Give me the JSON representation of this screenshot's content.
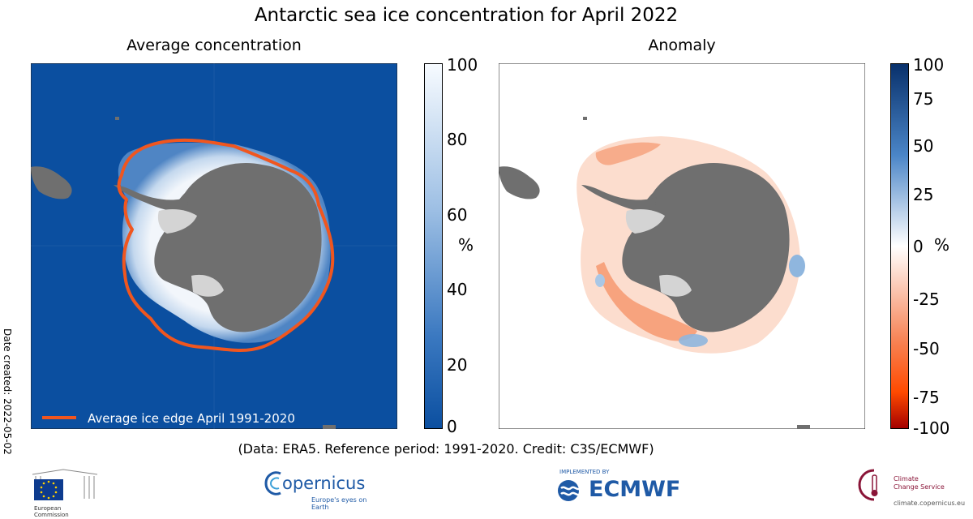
{
  "title": "Antarctic sea ice concentration for April 2022",
  "panels": {
    "left": {
      "title": "Average concentration",
      "colorbar": {
        "ticks": [
          "100",
          "80",
          "60",
          "40",
          "20",
          "0"
        ],
        "unit": "%"
      },
      "legend": {
        "label": "Average ice edge April 1991-2020",
        "color": "#f0561f"
      }
    },
    "right": {
      "title": "Anomaly",
      "colorbar": {
        "ticks": [
          "100",
          "75",
          "50",
          "25",
          "0",
          "-25",
          "-50",
          "-75",
          "-100"
        ],
        "unit": "%"
      }
    }
  },
  "date_created": "Date created: 2022-05-02",
  "credit": "(Data: ERA5.  Reference period: 1991-2020.  Credit: C3S/ECMWF)",
  "logos": {
    "eu": {
      "line1": "European",
      "line2": "Commission"
    },
    "copernicus": {
      "name": "opernicus",
      "tagline": "Europe's eyes on Earth"
    },
    "ecmwf": {
      "small": "IMPLEMENTED BY",
      "name": "ECMWF"
    },
    "c3s": {
      "line1": "Climate",
      "line2": "Change Service",
      "url": "climate.copernicus.eu"
    }
  },
  "colors": {
    "ocean": "#0b4fa0",
    "land": "#6f6f6f",
    "ice_shelf": "#d4d4d4",
    "ice_edge": "#f0561f",
    "anomaly_neg": "#f5a07a",
    "anomaly_pos": "#8fb6de"
  }
}
